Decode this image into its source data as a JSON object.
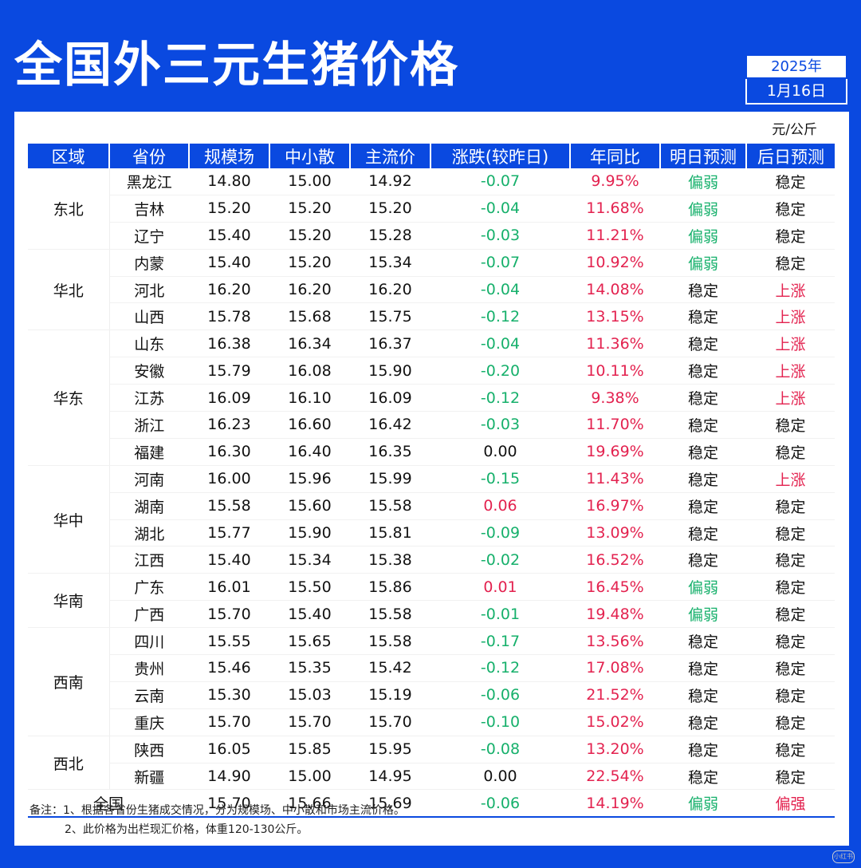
{
  "title": "全国外三元生猪价格",
  "date": {
    "year": "2025年",
    "day": "1月16日"
  },
  "unit": "元/公斤",
  "headers": [
    "区域",
    "省份",
    "规模场",
    "中小散",
    "主流价",
    "涨跌(较昨日)",
    "年同比",
    "明日预测",
    "后日预测"
  ],
  "regions": [
    {
      "name": "东北",
      "rows": [
        {
          "province": "黑龙江",
          "large": "14.80",
          "small": "15.00",
          "main": "14.92",
          "change": "-0.07",
          "yoy": "9.95%",
          "tomorrow": "偏弱",
          "after": "稳定"
        },
        {
          "province": "吉林",
          "large": "15.20",
          "small": "15.20",
          "main": "15.20",
          "change": "-0.04",
          "yoy": "11.68%",
          "tomorrow": "偏弱",
          "after": "稳定"
        },
        {
          "province": "辽宁",
          "large": "15.40",
          "small": "15.20",
          "main": "15.28",
          "change": "-0.03",
          "yoy": "11.21%",
          "tomorrow": "偏弱",
          "after": "稳定"
        }
      ]
    },
    {
      "name": "华北",
      "rows": [
        {
          "province": "内蒙",
          "large": "15.40",
          "small": "15.20",
          "main": "15.34",
          "change": "-0.07",
          "yoy": "10.92%",
          "tomorrow": "偏弱",
          "after": "稳定"
        },
        {
          "province": "河北",
          "large": "16.20",
          "small": "16.20",
          "main": "16.20",
          "change": "-0.04",
          "yoy": "14.08%",
          "tomorrow": "稳定",
          "after": "上涨"
        },
        {
          "province": "山西",
          "large": "15.78",
          "small": "15.68",
          "main": "15.75",
          "change": "-0.12",
          "yoy": "13.15%",
          "tomorrow": "稳定",
          "after": "上涨"
        }
      ]
    },
    {
      "name": "华东",
      "rows": [
        {
          "province": "山东",
          "large": "16.38",
          "small": "16.34",
          "main": "16.37",
          "change": "-0.04",
          "yoy": "11.36%",
          "tomorrow": "稳定",
          "after": "上涨"
        },
        {
          "province": "安徽",
          "large": "15.79",
          "small": "16.08",
          "main": "15.90",
          "change": "-0.20",
          "yoy": "10.11%",
          "tomorrow": "稳定",
          "after": "上涨"
        },
        {
          "province": "江苏",
          "large": "16.09",
          "small": "16.10",
          "main": "16.09",
          "change": "-0.12",
          "yoy": "9.38%",
          "tomorrow": "稳定",
          "after": "上涨"
        },
        {
          "province": "浙江",
          "large": "16.23",
          "small": "16.60",
          "main": "16.42",
          "change": "-0.03",
          "yoy": "11.70%",
          "tomorrow": "稳定",
          "after": "稳定"
        },
        {
          "province": "福建",
          "large": "16.30",
          "small": "16.40",
          "main": "16.35",
          "change": "0.00",
          "yoy": "19.69%",
          "tomorrow": "稳定",
          "after": "稳定"
        }
      ]
    },
    {
      "name": "华中",
      "rows": [
        {
          "province": "河南",
          "large": "16.00",
          "small": "15.96",
          "main": "15.99",
          "change": "-0.15",
          "yoy": "11.43%",
          "tomorrow": "稳定",
          "after": "上涨"
        },
        {
          "province": "湖南",
          "large": "15.58",
          "small": "15.60",
          "main": "15.58",
          "change": "0.06",
          "yoy": "16.97%",
          "tomorrow": "稳定",
          "after": "稳定"
        },
        {
          "province": "湖北",
          "large": "15.77",
          "small": "15.90",
          "main": "15.81",
          "change": "-0.09",
          "yoy": "13.09%",
          "tomorrow": "稳定",
          "after": "稳定"
        },
        {
          "province": "江西",
          "large": "15.40",
          "small": "15.34",
          "main": "15.38",
          "change": "-0.02",
          "yoy": "16.52%",
          "tomorrow": "稳定",
          "after": "稳定"
        }
      ]
    },
    {
      "name": "华南",
      "rows": [
        {
          "province": "广东",
          "large": "16.01",
          "small": "15.50",
          "main": "15.86",
          "change": "0.01",
          "yoy": "16.45%",
          "tomorrow": "偏弱",
          "after": "稳定"
        },
        {
          "province": "广西",
          "large": "15.70",
          "small": "15.40",
          "main": "15.58",
          "change": "-0.01",
          "yoy": "19.48%",
          "tomorrow": "偏弱",
          "after": "稳定"
        }
      ]
    },
    {
      "name": "西南",
      "rows": [
        {
          "province": "四川",
          "large": "15.55",
          "small": "15.65",
          "main": "15.58",
          "change": "-0.17",
          "yoy": "13.56%",
          "tomorrow": "稳定",
          "after": "稳定"
        },
        {
          "province": "贵州",
          "large": "15.46",
          "small": "15.35",
          "main": "15.42",
          "change": "-0.12",
          "yoy": "17.08%",
          "tomorrow": "稳定",
          "after": "稳定"
        },
        {
          "province": "云南",
          "large": "15.30",
          "small": "15.03",
          "main": "15.19",
          "change": "-0.06",
          "yoy": "21.52%",
          "tomorrow": "稳定",
          "after": "稳定"
        },
        {
          "province": "重庆",
          "large": "15.70",
          "small": "15.70",
          "main": "15.70",
          "change": "-0.10",
          "yoy": "15.02%",
          "tomorrow": "稳定",
          "after": "稳定"
        }
      ]
    },
    {
      "name": "西北",
      "rows": [
        {
          "province": "陕西",
          "large": "16.05",
          "small": "15.85",
          "main": "15.95",
          "change": "-0.08",
          "yoy": "13.20%",
          "tomorrow": "稳定",
          "after": "稳定"
        },
        {
          "province": "新疆",
          "large": "14.90",
          "small": "15.00",
          "main": "14.95",
          "change": "0.00",
          "yoy": "22.54%",
          "tomorrow": "稳定",
          "after": "稳定"
        }
      ]
    }
  ],
  "national": {
    "label": "全国",
    "large": "15.70",
    "small": "15.66",
    "main": "15.69",
    "change": "-0.06",
    "yoy": "14.19%",
    "tomorrow": "偏弱",
    "after": "偏强"
  },
  "notes": [
    "备注：1、根据各省份生猪成交情况，分为规模场、中小散和市场主流价格。",
    "2、此价格为出栏现汇价格，体重120-130公斤。"
  ],
  "watermark": "小红书",
  "colors": {
    "accent": "#0a49e0",
    "down": "#16b06b",
    "up": "#e3224f"
  }
}
